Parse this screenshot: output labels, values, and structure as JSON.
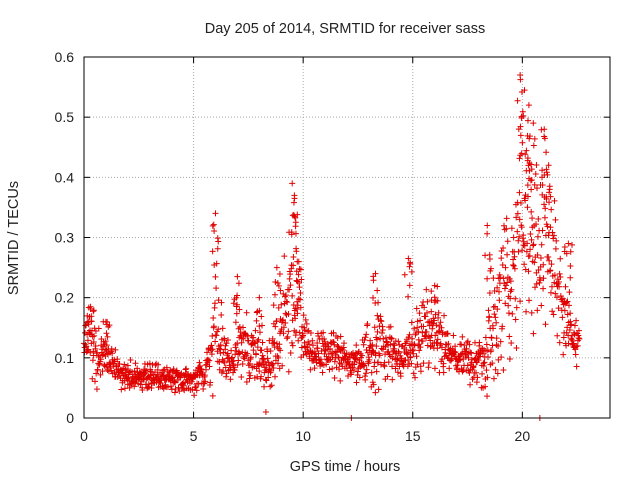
{
  "chart_data": {
    "type": "scatter",
    "title": "Day 205 of 2014, SRMTID for receiver sass",
    "xlabel": "GPS time / hours",
    "ylabel": "SRMTID / TECUs",
    "xlim": [
      0,
      24
    ],
    "ylim": [
      0,
      0.6
    ],
    "xticks": [
      "0",
      "5",
      "10",
      "15",
      "20"
    ],
    "yticks": [
      "0",
      "0.1",
      "0.2",
      "0.3",
      "0.4",
      "0.5",
      "0.6"
    ],
    "xtick_values": [
      0,
      5,
      10,
      15,
      20
    ],
    "ytick_values": [
      0,
      0.1,
      0.2,
      0.3,
      0.4,
      0.5,
      0.6
    ],
    "grid": true,
    "marker": "plus",
    "color": "#e00000",
    "x_range_of_data": [
      0,
      22.6
    ],
    "envelope": {
      "hours": [
        0,
        0.3,
        0.6,
        1.0,
        1.5,
        2.0,
        3.0,
        4.0,
        5.0,
        5.5,
        5.8,
        6.0,
        6.2,
        6.5,
        6.8,
        7.0,
        7.5,
        8.0,
        8.3,
        8.6,
        9.0,
        9.3,
        9.5,
        9.8,
        10.0,
        10.5,
        11.0,
        11.5,
        12.0,
        12.5,
        13.0,
        13.5,
        14.0,
        14.5,
        15.0,
        15.5,
        16.0,
        16.5,
        17.0,
        17.5,
        18.0,
        18.3,
        18.6,
        19.0,
        19.5,
        19.8,
        20.0,
        20.2,
        20.5,
        20.8,
        21.0,
        21.2,
        21.5,
        21.8,
        22.0,
        22.3,
        22.6
      ],
      "typical": [
        0.12,
        0.14,
        0.09,
        0.11,
        0.08,
        0.07,
        0.07,
        0.065,
        0.06,
        0.07,
        0.1,
        0.18,
        0.14,
        0.09,
        0.09,
        0.12,
        0.11,
        0.1,
        0.08,
        0.11,
        0.15,
        0.19,
        0.2,
        0.18,
        0.13,
        0.1,
        0.11,
        0.1,
        0.09,
        0.1,
        0.1,
        0.12,
        0.11,
        0.1,
        0.12,
        0.15,
        0.14,
        0.12,
        0.1,
        0.1,
        0.09,
        0.1,
        0.13,
        0.2,
        0.27,
        0.3,
        0.31,
        0.3,
        0.28,
        0.27,
        0.3,
        0.29,
        0.26,
        0.2,
        0.15,
        0.13,
        0.12
      ],
      "spread": [
        0.04,
        0.05,
        0.04,
        0.03,
        0.025,
        0.02,
        0.02,
        0.02,
        0.02,
        0.03,
        0.05,
        0.09,
        0.06,
        0.03,
        0.03,
        0.05,
        0.04,
        0.04,
        0.04,
        0.05,
        0.06,
        0.09,
        0.1,
        0.07,
        0.04,
        0.03,
        0.035,
        0.03,
        0.03,
        0.035,
        0.04,
        0.05,
        0.04,
        0.03,
        0.05,
        0.06,
        0.05,
        0.04,
        0.03,
        0.03,
        0.03,
        0.04,
        0.07,
        0.09,
        0.12,
        0.16,
        0.16,
        0.14,
        0.12,
        0.1,
        0.11,
        0.1,
        0.09,
        0.07,
        0.05,
        0.04,
        0.035
      ]
    },
    "peaks": [
      {
        "x": 0.3,
        "y": 0.185
      },
      {
        "x": 1.0,
        "y": 0.16
      },
      {
        "x": 6.0,
        "y": 0.34
      },
      {
        "x": 7.0,
        "y": 0.235
      },
      {
        "x": 8.0,
        "y": 0.2
      },
      {
        "x": 8.8,
        "y": 0.25
      },
      {
        "x": 9.5,
        "y": 0.39
      },
      {
        "x": 9.6,
        "y": 0.37
      },
      {
        "x": 9.8,
        "y": 0.26
      },
      {
        "x": 13.3,
        "y": 0.24
      },
      {
        "x": 14.8,
        "y": 0.265
      },
      {
        "x": 16.0,
        "y": 0.22
      },
      {
        "x": 18.4,
        "y": 0.32
      },
      {
        "x": 19.9,
        "y": 0.57
      },
      {
        "x": 20.1,
        "y": 0.545
      },
      {
        "x": 20.3,
        "y": 0.52
      },
      {
        "x": 20.5,
        "y": 0.49
      },
      {
        "x": 21.0,
        "y": 0.48
      },
      {
        "x": 21.2,
        "y": 0.42
      },
      {
        "x": 22.1,
        "y": 0.29
      }
    ],
    "lows": [
      {
        "x": 8.3,
        "y": 0.01
      },
      {
        "x": 12.2,
        "y": 0.0
      },
      {
        "x": 20.8,
        "y": 0.0
      }
    ]
  }
}
